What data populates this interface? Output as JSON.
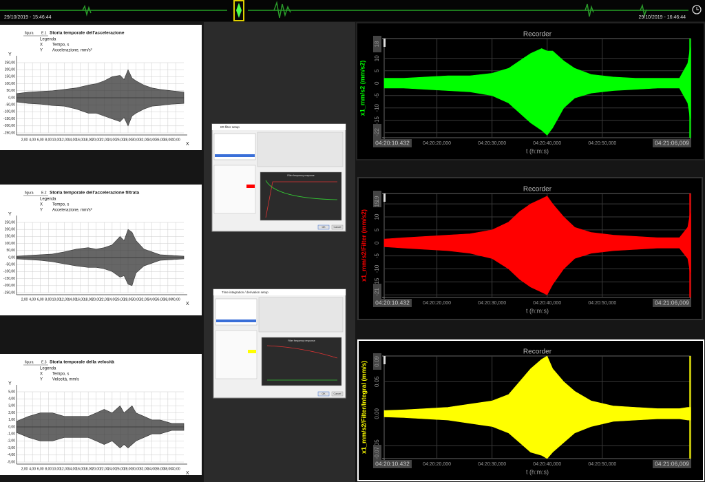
{
  "timeline": {
    "start_label": "29/10/2019 - 15:46:44",
    "end_label": "29/10/2019 - 16:46:44"
  },
  "dialogs": [
    {
      "title": "IIR filter setup",
      "plot_title": "Filter frequency response",
      "ok": "OK",
      "cancel": "Cancel"
    },
    {
      "title": "Time integration / derivation setup",
      "plot_title": "Filter frequency response",
      "ok": "OK",
      "cancel": "Cancel"
    }
  ],
  "chart_data": [
    {
      "type": "area",
      "figure": "figura",
      "figure_number": "E.1",
      "title": "Storia temporale dell'accelerazione",
      "legend_title": "Legenda",
      "x_axis_name": "X",
      "x_label": "Tempo, s",
      "y_axis_name": "Y",
      "y_label": "Accelerazione, mm/s²",
      "x": [
        0,
        3,
        6,
        9,
        12,
        15,
        18,
        20,
        22,
        24,
        26,
        27,
        28,
        29,
        30,
        32,
        34,
        36,
        39,
        42
      ],
      "series": [
        {
          "color": "#333333",
          "values": [
            30,
            40,
            45,
            50,
            60,
            70,
            90,
            100,
            120,
            150,
            160,
            130,
            200,
            140,
            120,
            90,
            70,
            60,
            50,
            40
          ]
        },
        {
          "color": "#333333",
          "values": [
            -30,
            -40,
            -45,
            -55,
            -60,
            -80,
            -110,
            -110,
            -130,
            -150,
            -170,
            -140,
            -200,
            -130,
            -110,
            -80,
            -60,
            -55,
            -45,
            -40
          ]
        }
      ],
      "xlim": [
        0,
        42
      ],
      "ylim": [
        -250,
        250
      ],
      "xticks": [
        {
          "value": 2,
          "label": "2,00"
        },
        {
          "value": 4,
          "label": "4,00"
        },
        {
          "value": 6,
          "label": "6,00"
        },
        {
          "value": 8,
          "label": "8,00"
        },
        {
          "value": 10,
          "label": "10,00"
        },
        {
          "value": 12,
          "label": "12,00"
        },
        {
          "value": 14,
          "label": "14,00"
        },
        {
          "value": 16,
          "label": "16,00"
        },
        {
          "value": 18,
          "label": "18,00"
        },
        {
          "value": 20,
          "label": "20,00"
        },
        {
          "value": 22,
          "label": "22,00"
        },
        {
          "value": 24,
          "label": "24,00"
        },
        {
          "value": 26,
          "label": "26,00"
        },
        {
          "value": 28,
          "label": "28,00"
        },
        {
          "value": 30,
          "label": "30,00"
        },
        {
          "value": 32,
          "label": "32,00"
        },
        {
          "value": 34,
          "label": "34,00"
        },
        {
          "value": 36,
          "label": "36,00"
        },
        {
          "value": 38,
          "label": "38,00"
        },
        {
          "value": 40,
          "label": "40,00"
        }
      ],
      "yticks": [
        {
          "value": 250,
          "label": "250,00"
        },
        {
          "value": 200,
          "label": "200,00"
        },
        {
          "value": 150,
          "label": "150,00"
        },
        {
          "value": 100,
          "label": "100,00"
        },
        {
          "value": 50,
          "label": "50,00"
        },
        {
          "value": 0,
          "label": "0,00"
        },
        {
          "value": -50,
          "label": "-50,00"
        },
        {
          "value": -100,
          "label": "-100,00"
        },
        {
          "value": -150,
          "label": "-150,00"
        },
        {
          "value": -200,
          "label": "-200,00"
        },
        {
          "value": -250,
          "label": "-250,00"
        }
      ],
      "grid": true
    },
    {
      "type": "area",
      "figure": "figura",
      "figure_number": "E.2",
      "title": "Storia temporale dell'accelerazione filtrata",
      "legend_title": "Legenda",
      "x_axis_name": "X",
      "x_label": "Tempo, s",
      "y_axis_name": "Y",
      "y_label": "Accelerazione, mm/s²",
      "x": [
        0,
        3,
        6,
        9,
        12,
        15,
        18,
        20,
        22,
        24,
        26,
        27,
        28,
        29,
        30,
        32,
        34,
        36,
        39,
        42
      ],
      "series": [
        {
          "color": "#333333",
          "values": [
            10,
            15,
            20,
            25,
            40,
            60,
            70,
            60,
            70,
            90,
            150,
            120,
            200,
            180,
            120,
            60,
            40,
            20,
            15,
            10
          ]
        },
        {
          "color": "#333333",
          "values": [
            -10,
            -15,
            -20,
            -30,
            -45,
            -60,
            -70,
            -70,
            -80,
            -100,
            -140,
            -130,
            -190,
            -200,
            -110,
            -60,
            -40,
            -20,
            -15,
            -10
          ]
        }
      ],
      "xlim": [
        0,
        42
      ],
      "ylim": [
        -250,
        250
      ],
      "xticks": [
        {
          "value": 2,
          "label": "2,00"
        },
        {
          "value": 4,
          "label": "4,00"
        },
        {
          "value": 6,
          "label": "6,00"
        },
        {
          "value": 8,
          "label": "8,00"
        },
        {
          "value": 10,
          "label": "10,00"
        },
        {
          "value": 12,
          "label": "12,00"
        },
        {
          "value": 14,
          "label": "14,00"
        },
        {
          "value": 16,
          "label": "16,00"
        },
        {
          "value": 18,
          "label": "18,00"
        },
        {
          "value": 20,
          "label": "20,00"
        },
        {
          "value": 22,
          "label": "22,00"
        },
        {
          "value": 24,
          "label": "24,00"
        },
        {
          "value": 26,
          "label": "26,00"
        },
        {
          "value": 28,
          "label": "28,00"
        },
        {
          "value": 30,
          "label": "30,00"
        },
        {
          "value": 32,
          "label": "32,00"
        },
        {
          "value": 34,
          "label": "34,00"
        },
        {
          "value": 36,
          "label": "36,00"
        },
        {
          "value": 38,
          "label": "38,00"
        },
        {
          "value": 40,
          "label": "40,00"
        }
      ],
      "yticks": [
        {
          "value": 250,
          "label": "250,00"
        },
        {
          "value": 200,
          "label": "200,00"
        },
        {
          "value": 150,
          "label": "150,00"
        },
        {
          "value": 100,
          "label": "100,00"
        },
        {
          "value": 50,
          "label": "50,00"
        },
        {
          "value": 0,
          "label": "0,00"
        },
        {
          "value": -50,
          "label": "-50,00"
        },
        {
          "value": -100,
          "label": "-100,00"
        },
        {
          "value": -150,
          "label": "-150,00"
        },
        {
          "value": -200,
          "label": "-200,00"
        },
        {
          "value": -250,
          "label": "-250,00"
        }
      ],
      "grid": true
    },
    {
      "type": "area",
      "figure": "figura",
      "figure_number": "E.3",
      "title": "Storia temporale della velocità",
      "legend_title": "Legenda",
      "x_axis_name": "X",
      "x_label": "Tempo, s",
      "y_axis_name": "Y",
      "y_label": "Velocità, mm/s",
      "x": [
        0,
        3,
        6,
        9,
        12,
        15,
        18,
        20,
        22,
        24,
        26,
        27,
        28,
        29,
        30,
        32,
        34,
        36,
        39,
        42
      ],
      "series": [
        {
          "color": "#333333",
          "values": [
            0.8,
            1.5,
            2,
            2,
            1.5,
            1.5,
            1.5,
            2,
            2.5,
            2,
            3,
            2,
            2.5,
            3,
            2,
            1.5,
            1,
            1,
            0.5,
            0.5
          ]
        },
        {
          "color": "#333333",
          "values": [
            -0.8,
            -1.5,
            -2,
            -2,
            -1.5,
            -1.5,
            -1.5,
            -2,
            -2.5,
            -2,
            -3,
            -2.5,
            -3,
            -2.5,
            -2,
            -1.5,
            -1,
            -1,
            -0.5,
            -0.5
          ]
        }
      ],
      "xlim": [
        0,
        42
      ],
      "ylim": [
        -5,
        5
      ],
      "xticks": [
        {
          "value": 2,
          "label": "2,00"
        },
        {
          "value": 4,
          "label": "4,00"
        },
        {
          "value": 6,
          "label": "6,00"
        },
        {
          "value": 8,
          "label": "8,00"
        },
        {
          "value": 10,
          "label": "10,00"
        },
        {
          "value": 12,
          "label": "12,00"
        },
        {
          "value": 14,
          "label": "14,00"
        },
        {
          "value": 16,
          "label": "16,00"
        },
        {
          "value": 18,
          "label": "18,00"
        },
        {
          "value": 20,
          "label": "20,00"
        },
        {
          "value": 22,
          "label": "22,00"
        },
        {
          "value": 24,
          "label": "24,00"
        },
        {
          "value": 26,
          "label": "26,00"
        },
        {
          "value": 28,
          "label": "28,00"
        },
        {
          "value": 30,
          "label": "30,00"
        },
        {
          "value": 32,
          "label": "32,00"
        },
        {
          "value": 34,
          "label": "34,00"
        },
        {
          "value": 36,
          "label": "36,00"
        },
        {
          "value": 38,
          "label": "38,00"
        },
        {
          "value": 40,
          "label": "40,00"
        }
      ],
      "yticks": [
        {
          "value": 5,
          "label": "5,00"
        },
        {
          "value": 4,
          "label": "4,00"
        },
        {
          "value": 3,
          "label": "3,00"
        },
        {
          "value": 2,
          "label": "2,00"
        },
        {
          "value": 1,
          "label": "1,00"
        },
        {
          "value": 0,
          "label": "0,00"
        },
        {
          "value": -1,
          "label": "-1,00"
        },
        {
          "value": -2,
          "label": "-2,00"
        },
        {
          "value": -3,
          "label": "-3,00"
        },
        {
          "value": -4,
          "label": "-4,00"
        },
        {
          "value": -5,
          "label": "-5,00"
        }
      ],
      "grid": true
    },
    {
      "type": "recorder",
      "title": "Recorder",
      "y_label": "x1_mm/s2 (mm/s2)",
      "x_label": "t (h:m:s)",
      "x": [
        10.432,
        14,
        18,
        22,
        26,
        30,
        33,
        35,
        37,
        39,
        40,
        41,
        43,
        45,
        48,
        52,
        56,
        60,
        64,
        65.5,
        66.009
      ],
      "series": [
        {
          "color": "#00ff00",
          "values": [
            2,
            2,
            2.5,
            3,
            3,
            4,
            6,
            9,
            12,
            14,
            13,
            13,
            9,
            6,
            3.5,
            2.5,
            2,
            2,
            2,
            8,
            15
          ]
        },
        {
          "color": "#00ff00",
          "values": [
            -2,
            -2,
            -2.5,
            -3,
            -3.5,
            -5,
            -8,
            -12,
            -16,
            -19,
            -21,
            -18,
            -10,
            -6,
            -4,
            -3,
            -2.5,
            -2,
            -2,
            -8,
            -15
          ]
        }
      ],
      "xlim": [
        10.432,
        66.009
      ],
      "ylim": [
        -22,
        18
      ],
      "xticks": [
        {
          "value": 10.432,
          "label": "04:20:10,432"
        },
        {
          "value": 20,
          "label": "04:20:20,000"
        },
        {
          "value": 30,
          "label": "04:20:30,000"
        },
        {
          "value": 40,
          "label": "04:20:40,000"
        },
        {
          "value": 50,
          "label": "04:20:50,000"
        },
        {
          "value": 66.009,
          "label": "04:21:06,009"
        }
      ],
      "yticks": [
        18,
        10,
        5,
        0,
        -5,
        -10,
        -15,
        -20,
        -22
      ],
      "grid": true
    },
    {
      "type": "recorder",
      "title": "Recorder",
      "y_label": "x1_mm/s2/Filter (mm/s2)",
      "x_label": "t (h:m:s)",
      "x": [
        10.432,
        14,
        18,
        22,
        26,
        30,
        33,
        35,
        37,
        39,
        40,
        41,
        43,
        45,
        48,
        52,
        56,
        60,
        64,
        65.5,
        66.009
      ],
      "series": [
        {
          "color": "#ff0000",
          "values": [
            1.5,
            2,
            2.5,
            3,
            3.5,
            5,
            8,
            12,
            15,
            17,
            18,
            15,
            10,
            6,
            4,
            3,
            2.5,
            2,
            2,
            6,
            12
          ]
        },
        {
          "color": "#ff0000",
          "values": [
            -1.5,
            -2,
            -2.5,
            -3,
            -4,
            -6,
            -10,
            -14,
            -17,
            -19,
            -20,
            -16,
            -10,
            -6,
            -4,
            -3,
            -2.5,
            -2,
            -2,
            -6,
            -12
          ]
        }
      ],
      "xlim": [
        10.432,
        66.009
      ],
      "ylim": [
        -21,
        19
      ],
      "xticks": [
        {
          "value": 10.432,
          "label": "04:20:10,432"
        },
        {
          "value": 20,
          "label": "04:20:20,000"
        },
        {
          "value": 30,
          "label": "04:20:30,000"
        },
        {
          "value": 40,
          "label": "04:20:40,000"
        },
        {
          "value": 50,
          "label": "04:20:50,000"
        },
        {
          "value": 66.009,
          "label": "04:21:06,009"
        }
      ],
      "yticks": [
        19,
        15,
        10,
        5,
        0,
        -5,
        -10,
        -15,
        -20,
        -21
      ],
      "grid": true
    },
    {
      "type": "recorder",
      "title": "Recorder",
      "y_label": "x1_mm/s2/Filter/Integral (mm/s)",
      "x_label": "t (h:m:s)",
      "x": [
        10.432,
        14,
        18,
        22,
        26,
        30,
        33,
        35,
        37,
        39,
        40,
        41,
        43,
        45,
        48,
        52,
        56,
        60,
        64,
        65.5,
        66.009
      ],
      "series": [
        {
          "color": "#ffff00",
          "values": [
            0.005,
            0.006,
            0.008,
            0.01,
            0.015,
            0.02,
            0.03,
            0.05,
            0.07,
            0.085,
            0.09,
            0.07,
            0.05,
            0.035,
            0.02,
            0.012,
            0.01,
            0.008,
            0.008,
            0.01,
            0.01
          ]
        },
        {
          "color": "#ffff00",
          "values": [
            -0.005,
            -0.006,
            -0.008,
            -0.01,
            -0.015,
            -0.02,
            -0.03,
            -0.045,
            -0.06,
            -0.065,
            -0.07,
            -0.06,
            -0.045,
            -0.03,
            -0.02,
            -0.012,
            -0.01,
            -0.008,
            -0.008,
            -0.01,
            -0.01
          ]
        }
      ],
      "xlim": [
        10.432,
        66.009
      ],
      "ylim": [
        -0.07,
        0.09
      ],
      "xticks": [
        {
          "value": 10.432,
          "label": "04:20:10,432"
        },
        {
          "value": 20,
          "label": "04:20:20,000"
        },
        {
          "value": 30,
          "label": "04:20:30,000"
        },
        {
          "value": 40,
          "label": "04:20:40,000"
        },
        {
          "value": 50,
          "label": "04:20:50,000"
        },
        {
          "value": 66.009,
          "label": "04:21:06,009"
        }
      ],
      "yticks": [
        0.09,
        0.05,
        {
          "value": 0,
          "label": "0.00"
        },
        -0.05,
        -0.07
      ],
      "grid": true
    }
  ]
}
